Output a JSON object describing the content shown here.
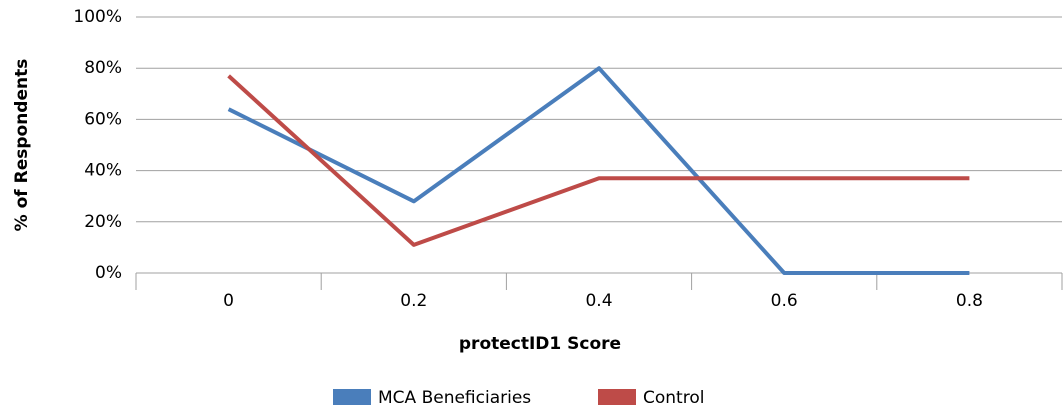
{
  "chart_data": {
    "type": "line",
    "x_label": "protectID1 Score",
    "y_label": "% of Respondents",
    "categories": [
      "0",
      "0.2",
      "0.4",
      "0.6",
      "0.8"
    ],
    "series": [
      {
        "name": "MCA Beneficiaries",
        "color": "#4a7ebb",
        "values": [
          64,
          28,
          80,
          0,
          0
        ]
      },
      {
        "name": "Control",
        "color": "#be4b48",
        "values": [
          77,
          11,
          37,
          37,
          37
        ]
      }
    ],
    "ylim": [
      0,
      100
    ],
    "yticks": [
      {
        "value": 0,
        "label": "0%"
      },
      {
        "value": 20,
        "label": "20%"
      },
      {
        "value": 40,
        "label": "40%"
      },
      {
        "value": 60,
        "label": "60%"
      },
      {
        "value": 80,
        "label": "80%"
      },
      {
        "value": 100,
        "label": "100%"
      }
    ],
    "grid": true,
    "legend": "bottom"
  }
}
